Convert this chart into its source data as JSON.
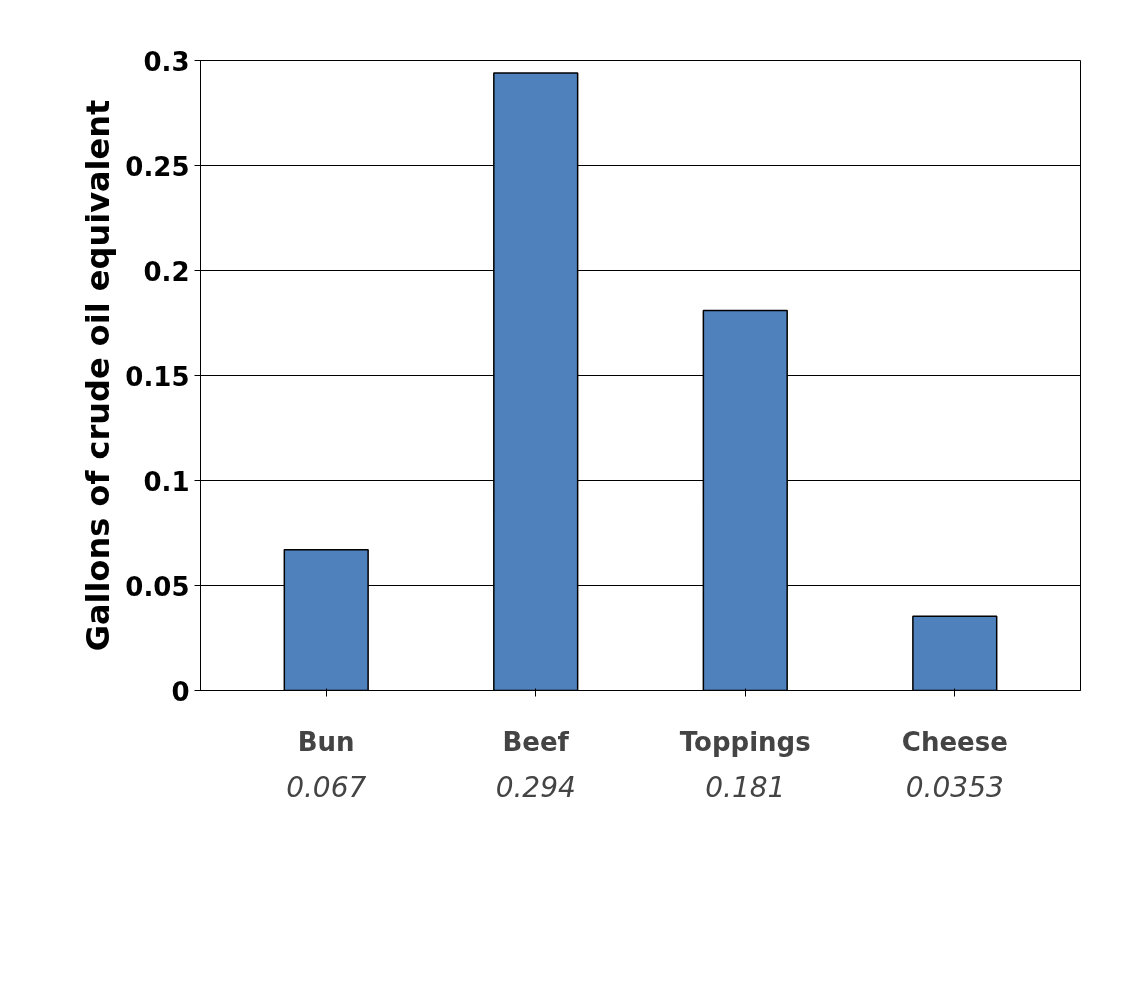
{
  "chart_data": {
    "type": "bar",
    "ylabel": "Gallons of crude oil equivalent",
    "categories": [
      "Bun",
      "Beef",
      "Toppings",
      "Cheese"
    ],
    "values": [
      0.067,
      0.294,
      0.181,
      0.0353
    ],
    "color": "#4f81bd",
    "ylim": [
      0,
      0.3
    ],
    "yticks": [
      0,
      0.05,
      0.1,
      0.15,
      0.2,
      0.25,
      0.3
    ],
    "grid": "y",
    "data_labels": true
  }
}
